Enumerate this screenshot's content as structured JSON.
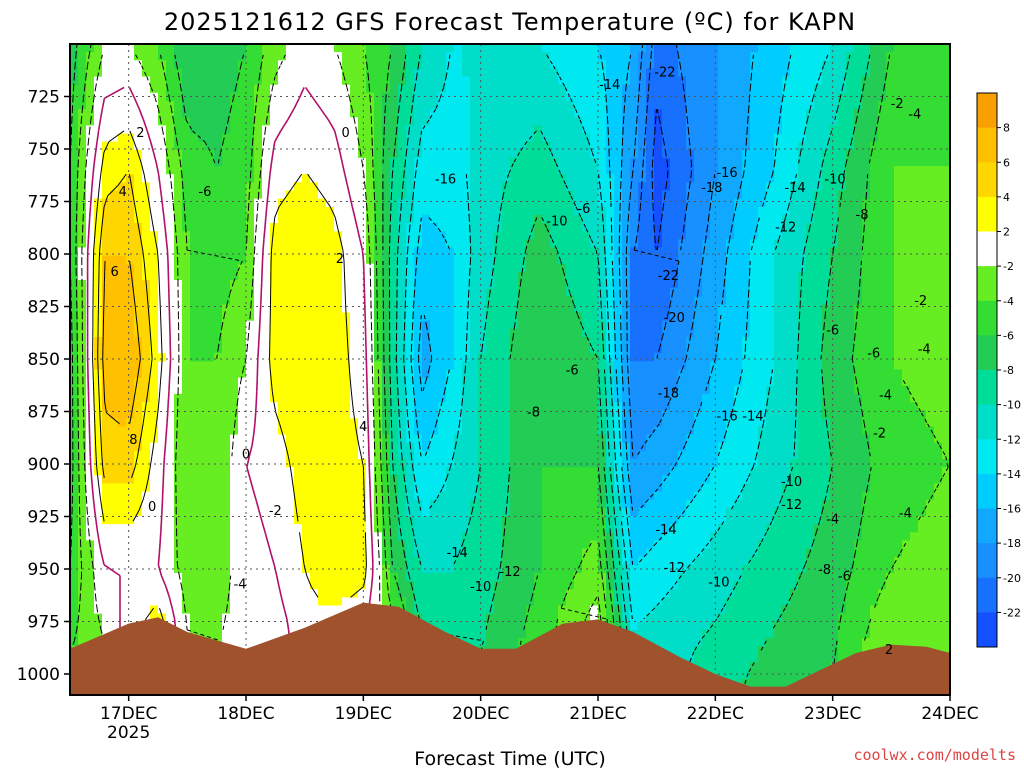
{
  "chart_data": {
    "type": "heatmap",
    "title": "2025121612 GFS Forecast Temperature (ºC) for KAPN",
    "xlabel": "Forecast Time (UTC)",
    "ylabel": "",
    "credit": "coolwx.com/modelts",
    "x_categories": [
      "17DEC",
      "18DEC",
      "19DEC",
      "20DEC",
      "21DEC",
      "22DEC",
      "23DEC",
      "24DEC"
    ],
    "x_sublabel": "2025",
    "y_ticks": [
      725,
      750,
      775,
      800,
      825,
      850,
      875,
      900,
      925,
      950,
      975,
      1000
    ],
    "ylim": [
      1010,
      700
    ],
    "xlim_days": [
      -0.5,
      7.0
    ],
    "legend_levels": [
      8,
      6,
      4,
      2,
      -2,
      -4,
      -6,
      -8,
      -10,
      -12,
      -14,
      -16,
      -18,
      -20,
      -22
    ],
    "legend_colors": [
      "#f7a000",
      "#ffc000",
      "#ffd700",
      "#ffff00",
      "#ffffff",
      "#66ee22",
      "#33dd33",
      "#22cc55",
      "#00dd99",
      "#00ddc8",
      "#00e8f0",
      "#00ccff",
      "#11a8ff",
      "#1890ff",
      "#1870ff",
      "#1450ff"
    ],
    "column_profiles": [
      {
        "x": -0.5,
        "pressures": [
          700,
          760,
          800,
          850,
          900,
          950,
          990
        ],
        "temps": [
          -7,
          -6,
          -6,
          -7,
          -7,
          -6,
          -4
        ]
      },
      {
        "x": -0.2,
        "pressures": [
          700,
          760,
          800,
          850,
          900,
          950,
          985
        ],
        "temps": [
          -2,
          3,
          6,
          7,
          5,
          0,
          -2
        ]
      },
      {
        "x": 0.0,
        "pressures": [
          700,
          760,
          800,
          850,
          900,
          950,
          980
        ],
        "temps": [
          -2,
          4,
          6,
          8,
          5,
          0,
          1
        ]
      },
      {
        "x": 0.25,
        "pressures": [
          700,
          760,
          800,
          850,
          900,
          950,
          975
        ],
        "temps": [
          -4,
          0,
          2,
          3,
          1,
          0,
          3
        ]
      },
      {
        "x": 0.5,
        "pressures": [
          700,
          760,
          800,
          850,
          900,
          950,
          980
        ],
        "temps": [
          -8,
          -5,
          -4,
          -4,
          -4,
          -3,
          -2
        ]
      },
      {
        "x": 0.75,
        "pressures": [
          700,
          760,
          800,
          850,
          900,
          950,
          990
        ],
        "temps": [
          -7,
          -6,
          -5,
          -4,
          -4,
          -3,
          -2
        ]
      },
      {
        "x": 1.0,
        "pressures": [
          700,
          760,
          800,
          850,
          900,
          950,
          990
        ],
        "temps": [
          -6,
          -5,
          -4,
          -2,
          0,
          -1,
          -1
        ]
      },
      {
        "x": 1.25,
        "pressures": [
          700,
          760,
          800,
          850,
          900,
          950,
          985
        ],
        "temps": [
          -3,
          1,
          3,
          3,
          1,
          0,
          -1
        ]
      },
      {
        "x": 1.5,
        "pressures": [
          700,
          760,
          800,
          850,
          900,
          950,
          975
        ],
        "temps": [
          -1,
          2,
          4,
          4,
          3,
          2,
          1
        ]
      },
      {
        "x": 1.75,
        "pressures": [
          700,
          760,
          800,
          850,
          900,
          950,
          970
        ],
        "temps": [
          -2,
          1,
          3,
          3,
          3,
          4,
          2
        ]
      },
      {
        "x": 2.0,
        "pressures": [
          700,
          760,
          800,
          850,
          900,
          950,
          968
        ],
        "temps": [
          -4,
          -2,
          0,
          1,
          2,
          3,
          1
        ]
      },
      {
        "x": 2.25,
        "pressures": [
          700,
          760,
          800,
          850,
          900,
          950,
          972
        ],
        "temps": [
          -6,
          -8,
          -9,
          -9,
          -8,
          -6,
          -4
        ]
      },
      {
        "x": 2.5,
        "pressures": [
          700,
          760,
          800,
          850,
          900,
          950,
          980
        ],
        "temps": [
          -10,
          -13,
          -15,
          -17,
          -14,
          -10,
          -8
        ]
      },
      {
        "x": 2.75,
        "pressures": [
          700,
          760,
          800,
          850,
          900,
          950,
          988
        ],
        "temps": [
          -12,
          -13,
          -14,
          -14,
          -12,
          -10,
          -8
        ]
      },
      {
        "x": 3.0,
        "pressures": [
          700,
          760,
          800,
          850,
          900,
          950,
          990
        ],
        "temps": [
          -12,
          -11,
          -11,
          -10,
          -10,
          -9,
          -8
        ]
      },
      {
        "x": 3.5,
        "pressures": [
          700,
          760,
          800,
          850,
          900,
          950,
          985
        ],
        "temps": [
          -12,
          -9,
          -7,
          -6,
          -6,
          -6,
          -5
        ]
      },
      {
        "x": 4.0,
        "pressures": [
          700,
          760,
          800,
          850,
          900,
          950,
          975
        ],
        "temps": [
          -14,
          -12,
          -10,
          -8,
          -6,
          -3,
          -1
        ]
      },
      {
        "x": 4.3,
        "pressures": [
          700,
          760,
          800,
          850,
          900,
          950,
          978
        ],
        "temps": [
          -16,
          -18,
          -20,
          -20,
          -18,
          -14,
          -12
        ]
      },
      {
        "x": 4.5,
        "pressures": [
          700,
          760,
          800,
          850,
          900,
          950,
          985
        ],
        "temps": [
          -21,
          -23,
          -22,
          -20,
          -17,
          -13,
          -11
        ]
      },
      {
        "x": 5.0,
        "pressures": [
          700,
          760,
          800,
          850,
          900,
          950,
          1000
        ],
        "temps": [
          -18,
          -18,
          -17,
          -16,
          -14,
          -11,
          -9
        ]
      },
      {
        "x": 5.5,
        "pressures": [
          700,
          760,
          800,
          850,
          900,
          950,
          1005
        ],
        "temps": [
          -15,
          -14,
          -12,
          -12,
          -11,
          -9,
          -7
        ]
      },
      {
        "x": 6.0,
        "pressures": [
          700,
          760,
          800,
          850,
          900,
          950,
          1000
        ],
        "temps": [
          -12,
          -9,
          -8,
          -7,
          -8,
          -7,
          -6
        ]
      },
      {
        "x": 6.5,
        "pressures": [
          700,
          760,
          800,
          850,
          900,
          950,
          985
        ],
        "temps": [
          -6,
          -4,
          -4,
          -4,
          -5,
          -4,
          -2
        ]
      },
      {
        "x": 7.0,
        "pressures": [
          700,
          760,
          800,
          850,
          900,
          950,
          990
        ],
        "temps": [
          -5,
          -4,
          -3,
          -3,
          -4,
          -3,
          -2
        ]
      }
    ],
    "terrain": {
      "x": [
        -0.5,
        0.0,
        0.25,
        0.5,
        1.0,
        1.5,
        2.0,
        2.3,
        2.7,
        3.0,
        3.3,
        3.7,
        4.0,
        4.3,
        4.7,
        5.0,
        5.3,
        5.6,
        5.9,
        6.2,
        6.5,
        6.8,
        7.0
      ],
      "p": [
        988,
        976,
        973,
        980,
        988,
        978,
        966,
        968,
        980,
        988,
        988,
        976,
        974,
        980,
        992,
        1000,
        1006,
        1006,
        998,
        990,
        986,
        987,
        990
      ]
    },
    "contour_labels": [
      {
        "x": 0.1,
        "p": 742,
        "t": "2"
      },
      {
        "x": -0.05,
        "p": 770,
        "t": "4"
      },
      {
        "x": -0.12,
        "p": 808,
        "t": "6"
      },
      {
        "x": 0.04,
        "p": 888,
        "t": "8"
      },
      {
        "x": 0.2,
        "p": 920,
        "t": "0"
      },
      {
        "x": 0.65,
        "p": 770,
        "t": "-6"
      },
      {
        "x": 1.0,
        "p": 895,
        "t": "0"
      },
      {
        "x": 1.25,
        "p": 922,
        "t": "-2"
      },
      {
        "x": 0.95,
        "p": 957,
        "t": "-4"
      },
      {
        "x": 1.85,
        "p": 742,
        "t": "0"
      },
      {
        "x": 1.8,
        "p": 802,
        "t": "2"
      },
      {
        "x": 2.0,
        "p": 882,
        "t": "4"
      },
      {
        "x": 2.7,
        "p": 764,
        "t": "-16"
      },
      {
        "x": 2.8,
        "p": 942,
        "t": "-14"
      },
      {
        "x": 3.0,
        "p": 958,
        "t": "-10"
      },
      {
        "x": 3.25,
        "p": 951,
        "t": "-12"
      },
      {
        "x": 3.65,
        "p": 784,
        "t": "-10"
      },
      {
        "x": 3.88,
        "p": 778,
        "t": "-6"
      },
      {
        "x": 3.45,
        "p": 875,
        "t": "-8"
      },
      {
        "x": 3.78,
        "p": 855,
        "t": "-6"
      },
      {
        "x": 4.1,
        "p": 719,
        "t": "-14"
      },
      {
        "x": 4.57,
        "p": 713,
        "t": "-22"
      },
      {
        "x": 4.6,
        "p": 810,
        "t": "-22"
      },
      {
        "x": 4.65,
        "p": 830,
        "t": "-20"
      },
      {
        "x": 4.6,
        "p": 866,
        "t": "-18"
      },
      {
        "x": 4.58,
        "p": 931,
        "t": "-14"
      },
      {
        "x": 4.65,
        "p": 949,
        "t": "-12"
      },
      {
        "x": 5.1,
        "p": 761,
        "t": "-16"
      },
      {
        "x": 4.97,
        "p": 768,
        "t": "-18"
      },
      {
        "x": 5.1,
        "p": 877,
        "t": "-16"
      },
      {
        "x": 5.32,
        "p": 877,
        "t": "-14"
      },
      {
        "x": 5.03,
        "p": 956,
        "t": "-10"
      },
      {
        "x": 5.68,
        "p": 768,
        "t": "-14"
      },
      {
        "x": 5.6,
        "p": 787,
        "t": "-12"
      },
      {
        "x": 6.02,
        "p": 764,
        "t": "-10"
      },
      {
        "x": 5.65,
        "p": 908,
        "t": "-10"
      },
      {
        "x": 5.65,
        "p": 919,
        "t": "-12"
      },
      {
        "x": 6.0,
        "p": 926,
        "t": "-4"
      },
      {
        "x": 6.25,
        "p": 781,
        "t": "-8"
      },
      {
        "x": 5.93,
        "p": 950,
        "t": "-8"
      },
      {
        "x": 6.1,
        "p": 953,
        "t": "-6"
      },
      {
        "x": 6.0,
        "p": 836,
        "t": "-6"
      },
      {
        "x": 6.35,
        "p": 847,
        "t": "-6"
      },
      {
        "x": 6.45,
        "p": 867,
        "t": "-4"
      },
      {
        "x": 6.4,
        "p": 885,
        "t": "-2"
      },
      {
        "x": 6.62,
        "p": 923,
        "t": "-4"
      },
      {
        "x": 6.78,
        "p": 845,
        "t": "-4"
      },
      {
        "x": 6.55,
        "p": 728,
        "t": "-2"
      },
      {
        "x": 6.7,
        "p": 733,
        "t": "-4"
      },
      {
        "x": 6.75,
        "p": 822,
        "t": "-2"
      },
      {
        "x": 6.48,
        "p": 988,
        "t": "2"
      }
    ]
  }
}
